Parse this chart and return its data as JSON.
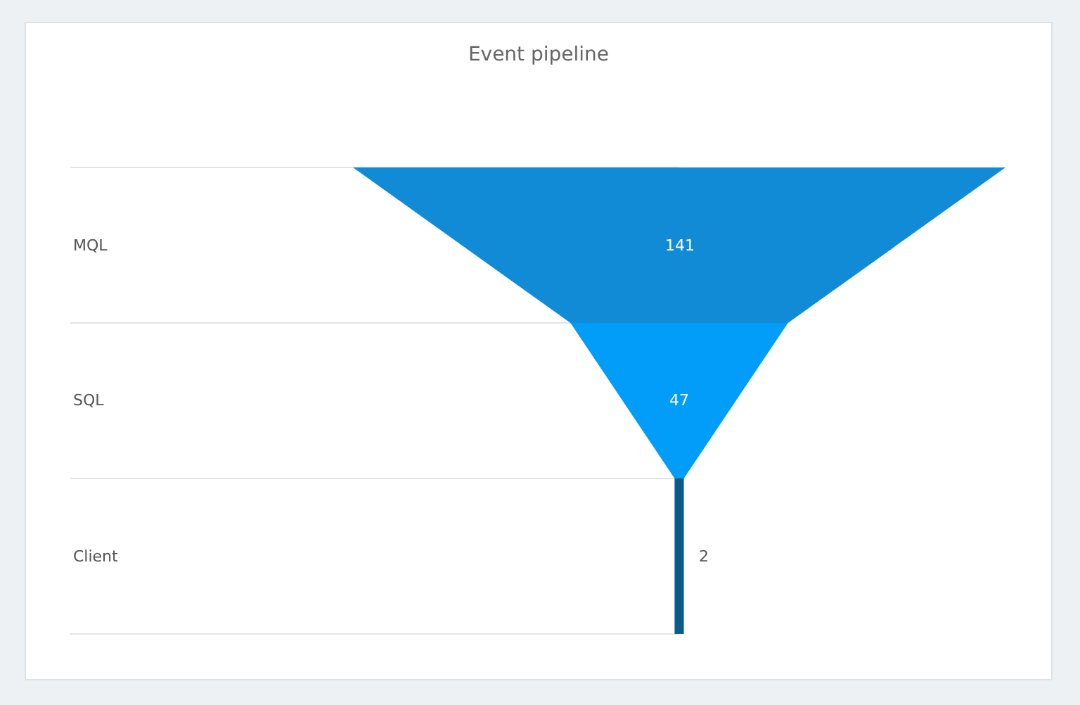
{
  "chart_data": {
    "type": "other",
    "title": "Event pipeline",
    "categories": [
      "MQL",
      "SQL",
      "Client"
    ],
    "values": [
      141,
      47,
      2
    ],
    "colors": [
      "#118bd6",
      "#019df9",
      "#0b5b8c"
    ],
    "data_labels": true
  }
}
